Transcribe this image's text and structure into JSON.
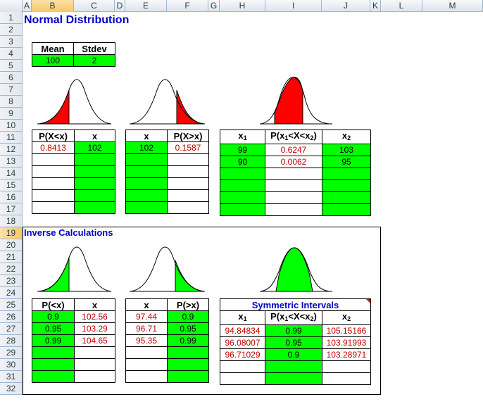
{
  "columns": [
    "A",
    "B",
    "C",
    "D",
    "E",
    "F",
    "G",
    "H",
    "I",
    "J",
    "K",
    "L",
    "M"
  ],
  "rows": [
    "1",
    "2",
    "3",
    "4",
    "5",
    "6",
    "7",
    "8",
    "9",
    "10",
    "11",
    "12",
    "13",
    "14",
    "15",
    "16",
    "17",
    "18",
    "19",
    "20",
    "21",
    "22",
    "23",
    "24",
    "25",
    "26",
    "27",
    "28",
    "29",
    "30",
    "31",
    "32"
  ],
  "selected_row": "19",
  "selected_column": "B",
  "title": "Normal Distribution",
  "params": {
    "mean_label": "Mean",
    "stdev_label": "Stdev",
    "mean": "100",
    "stdev": "2"
  },
  "cdf_left": {
    "h1": "P(X<x)",
    "h2": "x",
    "rows": [
      [
        "0.8413",
        "102"
      ]
    ]
  },
  "cdf_right": {
    "h1": "x",
    "h2": "P(X>x)",
    "rows": [
      [
        "102",
        "0.1587"
      ]
    ]
  },
  "cdf_between": {
    "h1": "x",
    "h1_sub": "1",
    "h2": "P(x",
    "h2_sub1": "1",
    "h2_mid": "<X<x",
    "h2_sub2": "2",
    "h2_end": ")",
    "h3": "x",
    "h3_sub": "2",
    "rows": [
      [
        "99",
        "0.6247",
        "103"
      ],
      [
        "90",
        "0.0062",
        "95"
      ]
    ]
  },
  "inverse_title": "Inverse Calculations",
  "inv_left": {
    "h1": "P(<x)",
    "h2": "x",
    "rows": [
      [
        "0.9",
        "102.56"
      ],
      [
        "0.95",
        "103.29"
      ],
      [
        "0.99",
        "104.65"
      ]
    ]
  },
  "inv_right": {
    "h1": "x",
    "h2": "P(>x)",
    "rows": [
      [
        "97.44",
        "0.9"
      ],
      [
        "96.71",
        "0.95"
      ],
      [
        "95.35",
        "0.99"
      ]
    ]
  },
  "symmetric": {
    "title": "Symmetric Intervals",
    "h1": "x",
    "h1_sub": "1",
    "h2": "P(x",
    "h2_sub1": "1",
    "h2_mid": "<X<x",
    "h2_sub2": "2",
    "h2_end": ")",
    "h3": "x",
    "h3_sub": "2",
    "rows": [
      [
        "94.84834",
        "0.99",
        "105.15166"
      ],
      [
        "96.08007",
        "0.95",
        "103.91993"
      ],
      [
        "96.71029",
        "0.9",
        "103.28971"
      ]
    ]
  },
  "colors": {
    "green": "#00ff00",
    "red": "#ff0000",
    "value_red": "#c00000",
    "title_blue": "#0000c8"
  }
}
